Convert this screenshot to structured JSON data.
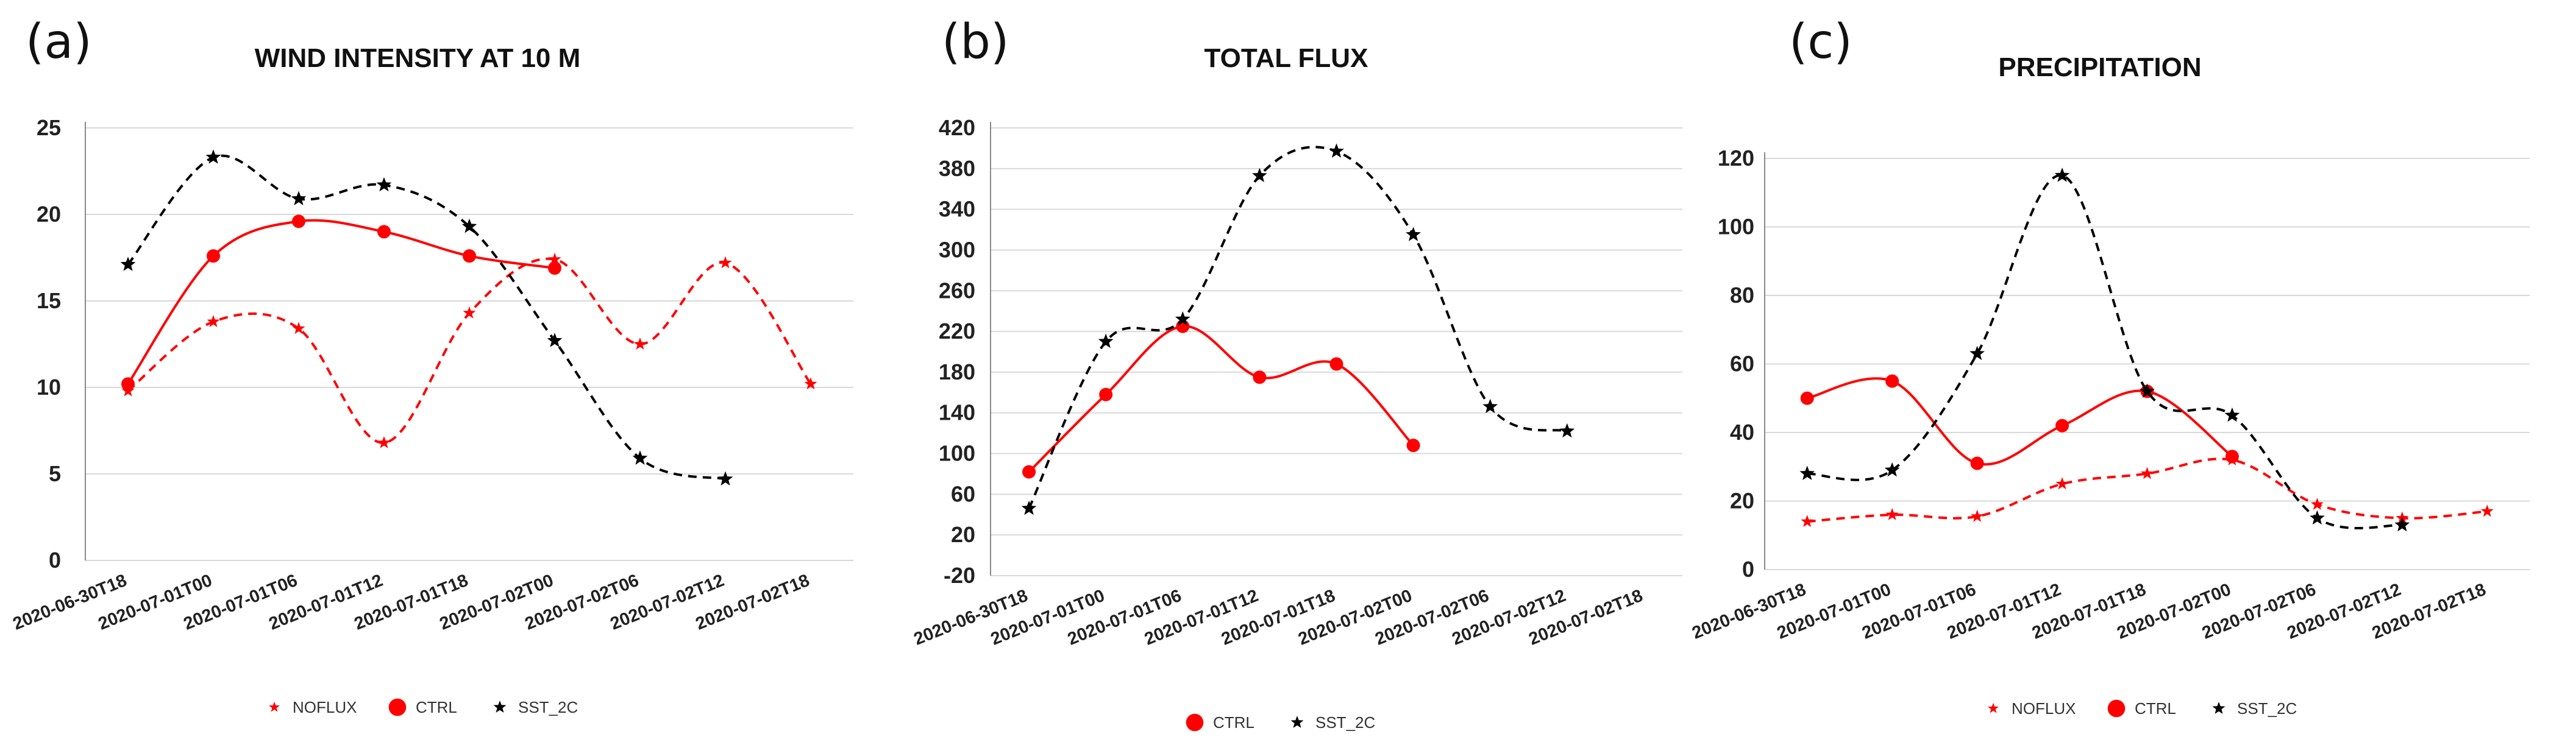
{
  "colors": {
    "NOFLUX": "#ff0000",
    "CTRL": "#ff0000",
    "SST_2C": "#000000",
    "grid": "#d9d9d9"
  },
  "chart_data": [
    {
      "type": "line",
      "panel_label": "(a)",
      "title": "WIND INTENSITY AT 10 M",
      "xlabel": "",
      "ylabel": "",
      "categories": [
        "2020-06-30T18",
        "2020-07-01T00",
        "2020-07-01T06",
        "2020-07-01T12",
        "2020-07-01T18",
        "2020-07-02T00",
        "2020-07-02T06",
        "2020-07-02T12",
        "2020-07-02T18"
      ],
      "yticks": [
        0,
        5,
        10,
        15,
        20,
        25
      ],
      "ylim": [
        0,
        25
      ],
      "grid": true,
      "legend_position": "bottom",
      "series": [
        {
          "name": "NOFLUX",
          "style": "dashed",
          "marker": "star-small",
          "color": "#ff0000",
          "values": [
            9.8,
            13.8,
            13.4,
            6.8,
            14.3,
            17.4,
            12.5,
            17.2,
            10.2
          ]
        },
        {
          "name": "CTRL",
          "style": "solid",
          "marker": "circle",
          "color": "#ff0000",
          "values": [
            10.2,
            17.6,
            19.6,
            19.0,
            17.6,
            16.9,
            null,
            null,
            null
          ]
        },
        {
          "name": "SST_2C",
          "style": "dashed",
          "marker": "star",
          "color": "#000000",
          "values": [
            17.1,
            23.3,
            20.9,
            21.7,
            19.3,
            12.7,
            5.9,
            4.7,
            null
          ]
        }
      ]
    },
    {
      "type": "line",
      "panel_label": "(b)",
      "title": "TOTAL FLUX",
      "xlabel": "",
      "ylabel": "",
      "categories": [
        "2020-06-30T18",
        "2020-07-01T00",
        "2020-07-01T06",
        "2020-07-01T12",
        "2020-07-01T18",
        "2020-07-02T00",
        "2020-07-02T06",
        "2020-07-02T12",
        "2020-07-02T18"
      ],
      "yticks": [
        -20,
        20,
        60,
        100,
        140,
        180,
        220,
        260,
        300,
        340,
        380,
        420
      ],
      "ylim": [
        -20,
        420
      ],
      "grid": true,
      "legend_position": "bottom",
      "series": [
        {
          "name": "CTRL",
          "style": "solid",
          "marker": "circle",
          "color": "#ff0000",
          "values": [
            82,
            158,
            225,
            175,
            188,
            108,
            null,
            null,
            null
          ]
        },
        {
          "name": "SST_2C",
          "style": "dashed",
          "marker": "star",
          "color": "#000000",
          "values": [
            46,
            210,
            232,
            373,
            397,
            315,
            146,
            122,
            null
          ]
        }
      ]
    },
    {
      "type": "line",
      "panel_label": "(c)",
      "title": "PRECIPITATION",
      "xlabel": "",
      "ylabel": "",
      "categories": [
        "2020-06-30T18",
        "2020-07-01T00",
        "2020-07-01T06",
        "2020-07-01T12",
        "2020-07-01T18",
        "2020-07-02T00",
        "2020-07-02T06",
        "2020-07-02T12",
        "2020-07-02T18"
      ],
      "yticks": [
        0,
        20,
        40,
        60,
        80,
        100,
        120
      ],
      "ylim": [
        0,
        120
      ],
      "grid": true,
      "legend_position": "bottom",
      "series": [
        {
          "name": "NOFLUX",
          "style": "dashed",
          "marker": "star-small",
          "color": "#ff0000",
          "values": [
            14,
            16,
            15.5,
            25,
            28,
            32,
            19,
            15,
            17
          ]
        },
        {
          "name": "CTRL",
          "style": "solid",
          "marker": "circle",
          "color": "#ff0000",
          "values": [
            50,
            55,
            31,
            42,
            52,
            33,
            null,
            null,
            null
          ]
        },
        {
          "name": "SST_2C",
          "style": "dashed",
          "marker": "star",
          "color": "#000000",
          "values": [
            28,
            29,
            63,
            115,
            52,
            45,
            15,
            13,
            null
          ]
        }
      ]
    }
  ]
}
